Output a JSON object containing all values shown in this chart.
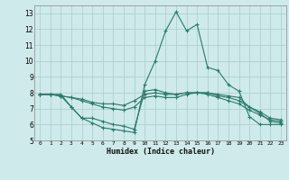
{
  "xlabel": "Humidex (Indice chaleur)",
  "bg_color": "#ceeaea",
  "grid_color": "#b0d0d0",
  "line_color": "#2a7a6a",
  "xlim": [
    -0.5,
    23.5
  ],
  "ylim": [
    5,
    13.5
  ],
  "yticks": [
    5,
    6,
    7,
    8,
    9,
    10,
    11,
    12,
    13
  ],
  "xticks": [
    0,
    1,
    2,
    3,
    4,
    5,
    6,
    7,
    8,
    9,
    10,
    11,
    12,
    13,
    14,
    15,
    16,
    17,
    18,
    19,
    20,
    21,
    22,
    23
  ],
  "lines": [
    {
      "x": [
        0,
        1,
        2,
        3,
        4,
        5,
        6,
        7,
        8,
        9,
        10,
        11,
        12,
        13,
        14,
        15,
        16,
        17,
        18,
        19,
        20,
        21,
        22,
        23
      ],
      "y": [
        7.9,
        7.9,
        7.8,
        7.1,
        6.4,
        6.1,
        5.8,
        5.7,
        5.6,
        5.5,
        8.5,
        10.0,
        11.9,
        13.1,
        11.9,
        12.3,
        9.6,
        9.4,
        8.5,
        8.1,
        6.5,
        6.0,
        6.0,
        6.0
      ]
    },
    {
      "x": [
        0,
        1,
        2,
        3,
        4,
        5,
        6,
        7,
        8,
        9,
        10,
        11,
        12,
        13,
        14,
        15,
        16,
        17,
        18,
        19,
        20,
        21,
        22,
        23
      ],
      "y": [
        7.9,
        7.9,
        7.8,
        7.7,
        7.5,
        7.3,
        7.1,
        7.0,
        6.9,
        7.1,
        7.7,
        7.8,
        7.7,
        7.7,
        7.9,
        8.0,
        7.9,
        7.7,
        7.5,
        7.3,
        6.9,
        6.6,
        6.3,
        6.2
      ]
    },
    {
      "x": [
        0,
        1,
        2,
        3,
        4,
        5,
        6,
        7,
        8,
        9,
        10,
        11,
        12,
        13,
        14,
        15,
        16,
        17,
        18,
        19,
        20,
        21,
        22,
        23
      ],
      "y": [
        7.9,
        7.9,
        7.8,
        7.7,
        7.6,
        7.4,
        7.3,
        7.3,
        7.2,
        7.5,
        7.9,
        8.0,
        7.9,
        7.9,
        8.0,
        8.0,
        8.0,
        7.8,
        7.7,
        7.5,
        7.1,
        6.8,
        6.4,
        6.3
      ]
    },
    {
      "x": [
        0,
        1,
        2,
        3,
        4,
        5,
        6,
        7,
        8,
        9,
        10,
        11,
        12,
        13,
        14,
        15,
        16,
        17,
        18,
        19,
        20,
        21,
        22,
        23
      ],
      "y": [
        7.9,
        7.9,
        7.9,
        7.1,
        6.4,
        6.4,
        6.2,
        6.0,
        5.9,
        5.7,
        8.1,
        8.2,
        8.0,
        7.9,
        8.0,
        8.0,
        8.0,
        7.9,
        7.8,
        7.7,
        7.1,
        6.7,
        6.2,
        6.1
      ]
    }
  ]
}
